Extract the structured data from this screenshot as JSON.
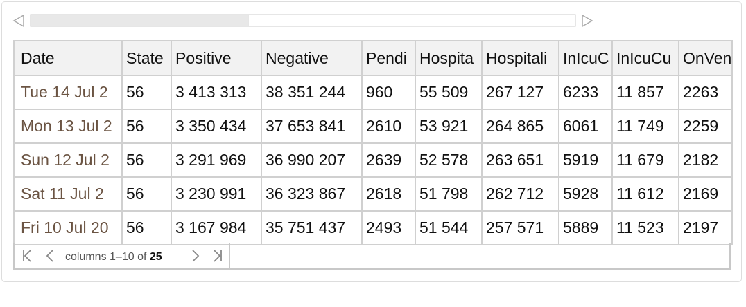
{
  "table": {
    "header": [
      "Date",
      "State",
      "Positive",
      "Negative",
      "Pendi",
      "Hospita",
      "Hospitali",
      "InIcuC",
      "InIcuCu",
      "OnVen"
    ],
    "rows": [
      [
        "Tue 14 Jul 2",
        "56",
        "3 413 313",
        "38 351 244",
        "960",
        "55 509",
        "267 127",
        "6233",
        "11 857",
        "2263"
      ],
      [
        "Mon 13 Jul 2",
        "56",
        "3 350 434",
        "37 653 841",
        "2610",
        "53 921",
        "264 865",
        "6061",
        "11 749",
        "2259"
      ],
      [
        "Sun 12 Jul 2",
        "56",
        "3 291 969",
        "36 990 207",
        "2639",
        "52 578",
        "263 651",
        "5919",
        "11 679",
        "2182"
      ],
      [
        "Sat 11 Jul 2",
        "56",
        "3 230 991",
        "36 323 867",
        "2618",
        "51 798",
        "262 712",
        "5928",
        "11 612",
        "2169"
      ],
      [
        "Fri 10 Jul 20",
        "56",
        "3 167 984",
        "35 751 437",
        "2493",
        "51 544",
        "257 571",
        "5889",
        "11 523",
        "2197"
      ]
    ]
  },
  "pager": {
    "label": "columns 1–10 of",
    "total": "25"
  }
}
